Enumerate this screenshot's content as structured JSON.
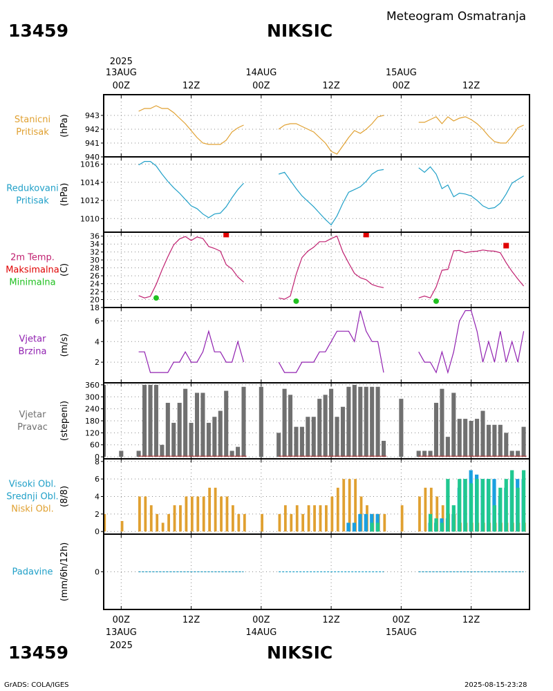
{
  "header": {
    "station_id": "13459",
    "station_name": "NIKSIC",
    "subtitle": "Meteogram Osmatranja"
  },
  "footer": {
    "credit": "GrADS: COLA/IGES",
    "timestamp": "2025-08-15-23:28"
  },
  "time_axis": {
    "year": "2025",
    "day_labels": [
      "13AUG",
      "14AUG",
      "15AUG"
    ],
    "tick_labels": [
      "00Z",
      "12Z",
      "00Z",
      "12Z",
      "00Z",
      "12Z"
    ],
    "tick_hours": [
      0,
      12,
      24,
      36,
      48,
      60
    ],
    "range_hours": [
      -3,
      70
    ]
  },
  "chart_data": [
    {
      "type": "line",
      "name": "pressure",
      "title": "Stanicni Pritisak",
      "title_lines": [
        "Stanicni",
        "Pritisak"
      ],
      "ylabel": "(hPa)",
      "ylim": [
        940,
        944.5
      ],
      "yticks": [
        940,
        941,
        942,
        943
      ],
      "color": "#e0a030",
      "segments": [
        {
          "x": [
            3,
            4,
            5,
            6,
            7,
            8,
            9,
            10,
            11,
            12,
            13,
            14,
            15,
            16,
            17,
            18,
            19,
            20,
            21
          ],
          "y": [
            943.3,
            943.5,
            943.5,
            943.7,
            943.5,
            943.5,
            943.2,
            942.8,
            942.4,
            941.9,
            941.4,
            941.0,
            940.9,
            940.9,
            940.9,
            941.2,
            941.8,
            942.1,
            942.3
          ]
        },
        {
          "x": [
            27,
            28,
            29,
            30,
            31,
            32,
            33,
            34,
            35,
            36,
            37,
            38,
            39,
            40,
            41,
            42,
            43,
            44,
            45
          ],
          "y": [
            942.0,
            942.3,
            942.4,
            942.4,
            942.2,
            942.0,
            941.8,
            941.4,
            941.0,
            940.4,
            940.2,
            940.8,
            941.4,
            941.9,
            941.7,
            942.0,
            942.4,
            942.9,
            943.0
          ]
        },
        {
          "x": [
            51,
            52,
            53,
            54,
            55,
            56,
            57,
            58,
            59,
            60,
            61,
            62,
            63,
            64,
            65,
            66,
            67,
            68,
            69
          ],
          "y": [
            942.5,
            942.5,
            942.7,
            942.9,
            942.4,
            942.9,
            942.6,
            942.8,
            942.9,
            942.7,
            942.4,
            942.0,
            941.5,
            941.1,
            941.0,
            941.0,
            941.5,
            942.1,
            942.3
          ]
        }
      ]
    },
    {
      "type": "line",
      "name": "reduced-pressure",
      "title": "Redukovani Pritisak",
      "title_lines": [
        "Redukovani",
        "Pritisak"
      ],
      "ylabel": "(hPa)",
      "ylim": [
        1008.5,
        1016.8
      ],
      "yticks": [
        1010,
        1012,
        1014,
        1016
      ],
      "color": "#20a0c8",
      "segments": [
        {
          "x": [
            3,
            4,
            5,
            6,
            7,
            8,
            9,
            10,
            11,
            12,
            13,
            14,
            15,
            16,
            17,
            18,
            19,
            20,
            21
          ],
          "y": [
            1015.9,
            1016.3,
            1016.3,
            1015.8,
            1014.9,
            1014.1,
            1013.4,
            1012.8,
            1012.1,
            1011.4,
            1011.1,
            1010.5,
            1010.1,
            1010.5,
            1010.6,
            1011.3,
            1012.3,
            1013.2,
            1013.9
          ]
        },
        {
          "x": [
            27,
            28,
            29,
            30,
            31,
            32,
            33,
            34,
            35,
            36,
            37,
            38,
            39,
            40,
            41,
            42,
            43,
            44,
            45
          ],
          "y": [
            1014.9,
            1015.1,
            1014.2,
            1013.3,
            1012.5,
            1011.9,
            1011.3,
            1010.6,
            1009.9,
            1009.3,
            1010.3,
            1011.7,
            1012.9,
            1013.2,
            1013.5,
            1014.1,
            1014.9,
            1015.3,
            1015.4
          ]
        },
        {
          "x": [
            51,
            52,
            53,
            54,
            55,
            56,
            57,
            58,
            59,
            60,
            61,
            62,
            63,
            64,
            65,
            66,
            67,
            68,
            69
          ],
          "y": [
            1015.6,
            1015.1,
            1015.7,
            1014.9,
            1013.3,
            1013.7,
            1012.4,
            1012.8,
            1012.7,
            1012.5,
            1012.0,
            1011.4,
            1011.1,
            1011.2,
            1011.7,
            1012.7,
            1013.9,
            1014.3,
            1014.7
          ]
        }
      ]
    },
    {
      "type": "line",
      "name": "temperature",
      "title": "2m Temp. Maksimalna Minimalna",
      "title_lines": [
        "2m Temp.",
        "Maksimalna",
        "Minimalna"
      ],
      "title_colors": [
        "#c02070",
        "#e00000",
        "#20c020"
      ],
      "ylabel": "(C)",
      "ylim": [
        18,
        37
      ],
      "yticks": [
        18,
        20,
        22,
        24,
        26,
        28,
        30,
        32,
        34,
        36
      ],
      "color": "#c02070",
      "segments": [
        {
          "x": [
            3,
            4,
            5,
            6,
            7,
            8,
            9,
            10,
            11,
            12,
            13,
            14,
            15,
            16,
            17,
            18,
            19,
            20,
            21
          ],
          "y": [
            21.0,
            20.4,
            20.8,
            23.8,
            27.5,
            30.8,
            33.8,
            35.3,
            35.9,
            34.9,
            35.8,
            35.4,
            33.4,
            32.9,
            32.2,
            28.8,
            27.7,
            25.7,
            24.4
          ]
        },
        {
          "x": [
            27,
            28,
            29,
            30,
            31,
            32,
            33,
            34,
            35,
            36,
            37,
            38,
            39,
            40,
            41,
            42,
            43,
            44,
            45
          ],
          "y": [
            20.4,
            20.1,
            20.9,
            26.4,
            30.6,
            32.2,
            33.2,
            34.6,
            34.6,
            35.4,
            36.0,
            32.0,
            29.2,
            26.6,
            25.5,
            25.0,
            23.8,
            23.3,
            23.0
          ]
        },
        {
          "x": [
            51,
            52,
            53,
            54,
            55,
            56,
            57,
            58,
            59,
            60,
            61,
            62,
            63,
            64,
            65,
            66,
            67,
            68,
            69
          ],
          "y": [
            20.4,
            20.9,
            20.4,
            23.2,
            27.4,
            27.6,
            32.3,
            32.4,
            31.8,
            32.1,
            32.2,
            32.5,
            32.3,
            32.2,
            31.8,
            29.3,
            27.1,
            25.2,
            23.4
          ]
        }
      ],
      "max_points": {
        "x": [
          18,
          42,
          66
        ],
        "y": [
          36.4,
          36.4,
          33.6
        ],
        "color": "#e00000"
      },
      "min_points": {
        "x": [
          6,
          30,
          54
        ],
        "y": [
          20.4,
          19.6,
          19.6
        ],
        "color": "#20c020"
      }
    },
    {
      "type": "line",
      "name": "wind-speed",
      "title": "Vjetar Brzina",
      "title_lines": [
        "Vjetar",
        "Brzina"
      ],
      "ylabel": "(m/s)",
      "ylim": [
        0,
        7.3
      ],
      "yticks": [
        2,
        4,
        6
      ],
      "color": "#9020b0",
      "segments": [
        {
          "x": [
            3,
            4,
            5,
            6,
            7,
            8,
            9,
            10,
            11,
            12,
            13,
            14,
            15,
            16,
            17,
            18,
            19,
            20,
            21
          ],
          "y": [
            3,
            3,
            1,
            1,
            1,
            1,
            2,
            2,
            3,
            2,
            2,
            3,
            5,
            3,
            3,
            2,
            2,
            4,
            2
          ]
        },
        {
          "x": [
            27,
            28,
            29,
            30,
            31,
            32,
            33,
            34,
            35,
            36,
            37,
            38,
            39,
            40,
            41,
            42,
            43,
            44,
            45
          ],
          "y": [
            2,
            1,
            1,
            1,
            2,
            2,
            2,
            3,
            3,
            4,
            5,
            5,
            5,
            4,
            7,
            5,
            4,
            4,
            1
          ]
        },
        {
          "x": [
            51,
            52,
            53,
            54,
            55,
            56,
            57,
            58,
            59,
            60,
            61,
            62,
            63,
            64,
            65,
            66,
            67,
            68,
            69
          ],
          "y": [
            3,
            2,
            2,
            1,
            3,
            1,
            3,
            6,
            7,
            7,
            5,
            2,
            4,
            2,
            5,
            2,
            4,
            2,
            5
          ]
        }
      ]
    },
    {
      "type": "bar",
      "name": "wind-direction",
      "title": "Vjetar Pravac",
      "title_lines": [
        "Vjetar",
        "Pravac"
      ],
      "ylabel": "(stepeni)",
      "ylim": [
        -10,
        370
      ],
      "yticks": [
        0,
        60,
        120,
        180,
        240,
        300,
        360
      ],
      "color": "#707070",
      "x": [
        -3,
        0,
        3,
        4,
        5,
        6,
        7,
        8,
        9,
        10,
        11,
        12,
        13,
        14,
        15,
        16,
        17,
        18,
        19,
        20,
        21,
        24,
        27,
        28,
        29,
        30,
        31,
        32,
        33,
        34,
        35,
        36,
        37,
        38,
        39,
        40,
        41,
        42,
        43,
        44,
        45,
        48,
        51,
        52,
        53,
        54,
        55,
        56,
        57,
        58,
        59,
        60,
        61,
        62,
        63,
        64,
        65,
        66,
        67,
        68,
        69
      ],
      "values": [
        360,
        30,
        30,
        360,
        360,
        360,
        60,
        270,
        170,
        270,
        340,
        170,
        320,
        320,
        170,
        200,
        230,
        330,
        30,
        50,
        350,
        350,
        120,
        340,
        310,
        150,
        150,
        200,
        200,
        290,
        310,
        340,
        200,
        250,
        350,
        360,
        350,
        350,
        350,
        350,
        80,
        290,
        30,
        30,
        30,
        270,
        340,
        100,
        320,
        190,
        190,
        180,
        190,
        230,
        160,
        160,
        160,
        120,
        30,
        30,
        150
      ]
    },
    {
      "type": "bar",
      "name": "cloud-cover",
      "title": "Visoki Obl. Srednji Obl. Niski Obl.",
      "title_lines": [
        "Visoki Obl.",
        "Srednji Obl.",
        "Niski Obl."
      ],
      "title_colors": [
        "#20a0c8",
        "#20a0c8",
        "#e0a030"
      ],
      "ylabel": "(8/8)",
      "ylim": [
        -0.3,
        8.3
      ],
      "yticks": [
        0,
        2,
        4,
        6,
        8
      ],
      "series": [
        {
          "name": "Niski Obl.",
          "color": "#e0a030",
          "x": [
            -3,
            0,
            3,
            4,
            5,
            6,
            7,
            8,
            9,
            10,
            11,
            12,
            13,
            14,
            15,
            16,
            17,
            18,
            19,
            20,
            21,
            24,
            27,
            28,
            29,
            30,
            31,
            32,
            33,
            34,
            35,
            36,
            37,
            38,
            39,
            40,
            41,
            42,
            43,
            44,
            45,
            48,
            51,
            52,
            53,
            54,
            55,
            56,
            57,
            58,
            59,
            60,
            61,
            62,
            63,
            64,
            65,
            66,
            67,
            68,
            69
          ],
          "values": [
            2,
            1.2,
            4,
            4,
            3,
            2,
            1,
            2,
            3,
            3,
            4,
            4,
            4,
            4,
            5,
            5,
            4,
            4,
            3,
            2,
            2,
            2,
            2,
            3,
            2,
            3,
            2,
            3,
            3,
            3,
            3,
            4,
            5,
            6,
            6,
            6,
            4,
            3,
            2,
            2,
            2,
            3,
            4,
            5,
            5,
            4,
            3,
            2,
            2,
            1,
            1,
            1,
            1,
            1,
            1,
            1,
            1,
            1,
            1,
            1,
            1
          ]
        },
        {
          "name": "Srednji Obl.",
          "color": "#1aa0e0",
          "x": [
            39,
            40,
            41,
            42,
            43,
            44,
            53,
            54,
            55,
            56,
            57,
            58,
            59,
            60,
            61,
            62,
            63,
            64,
            65,
            66,
            67,
            68,
            69
          ],
          "values": [
            1,
            1,
            2,
            2,
            2,
            2,
            1,
            1,
            1.5,
            1.5,
            2,
            5,
            6,
            7,
            6.5,
            6,
            6,
            6,
            4,
            5,
            6,
            6,
            6
          ]
        },
        {
          "name": "Visoki Obl.",
          "color": "#20c890",
          "x": [
            43,
            44,
            53,
            54,
            55,
            56,
            57,
            58,
            59,
            60,
            61,
            62,
            63,
            64,
            65,
            66,
            67,
            68,
            69
          ],
          "values": [
            1,
            1,
            2,
            1.5,
            1,
            6,
            3,
            6,
            6,
            5.5,
            6,
            6,
            6,
            3,
            5,
            6,
            7,
            5,
            7
          ]
        }
      ]
    },
    {
      "type": "line",
      "name": "precipitation",
      "title": "Padavine",
      "title_lines": [
        "Padavine"
      ],
      "ylabel": "(mm/6h/12h)",
      "ylim": [
        -5,
        5
      ],
      "yticks": [
        0
      ],
      "color": "#20a0c8",
      "segments": [
        {
          "x": [
            3,
            21
          ],
          "y": [
            0,
            0
          ]
        },
        {
          "x": [
            27,
            45
          ],
          "y": [
            0,
            0
          ]
        },
        {
          "x": [
            51,
            69
          ],
          "y": [
            0,
            0
          ]
        }
      ]
    }
  ]
}
